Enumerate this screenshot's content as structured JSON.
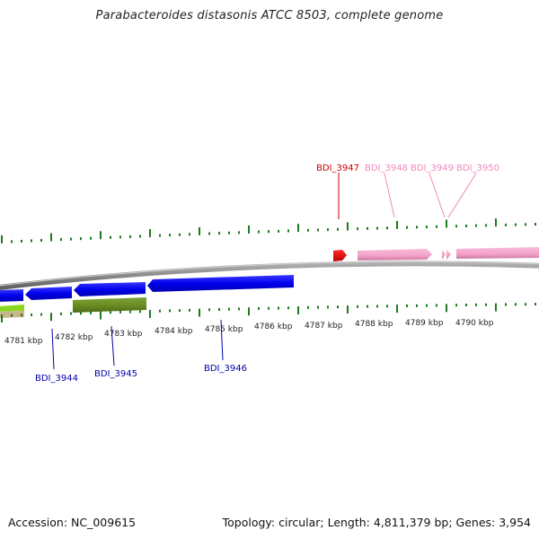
{
  "title": "Parabacteroides distasonis ATCC 8503, complete genome",
  "footer": {
    "accession": "Accession: NC_009615",
    "summary": "Topology: circular; Length: 4,811,379 bp; Genes: 3,954"
  },
  "colors": {
    "forward_gene": "#f4a0c8",
    "forward_gene_selected": "#e60000",
    "reverse_gene": "#0000ee",
    "olive_gene": "#6b8e23",
    "green_gene": "#8bd820",
    "tan_gene": "#c8b68c",
    "backbone": "#8a8a8a",
    "tick": "#1e7a1e",
    "label_red": "#cc0000",
    "label_pink": "#ee88bb",
    "label_blue": "#0000aa"
  },
  "scale": {
    "unit": "kbp",
    "labels": [
      "4781 kbp",
      "4782 kbp",
      "4783 kbp",
      "4784 kbp",
      "4785 kbp",
      "4786 kbp",
      "4787 kbp",
      "4788 kbp",
      "4789 kbp",
      "4790 kbp"
    ]
  },
  "genes": [
    {
      "label": "BDI_3944",
      "strand": "reverse"
    },
    {
      "label": "BDI_3945",
      "strand": "reverse"
    },
    {
      "label": "BDI_3946",
      "strand": "reverse"
    },
    {
      "label": "BDI_3947",
      "strand": "forward"
    },
    {
      "label": "BDI_3948",
      "strand": "forward"
    },
    {
      "label": "BDI_3949",
      "strand": "forward"
    },
    {
      "label": "BDI_3950",
      "strand": "forward"
    }
  ]
}
